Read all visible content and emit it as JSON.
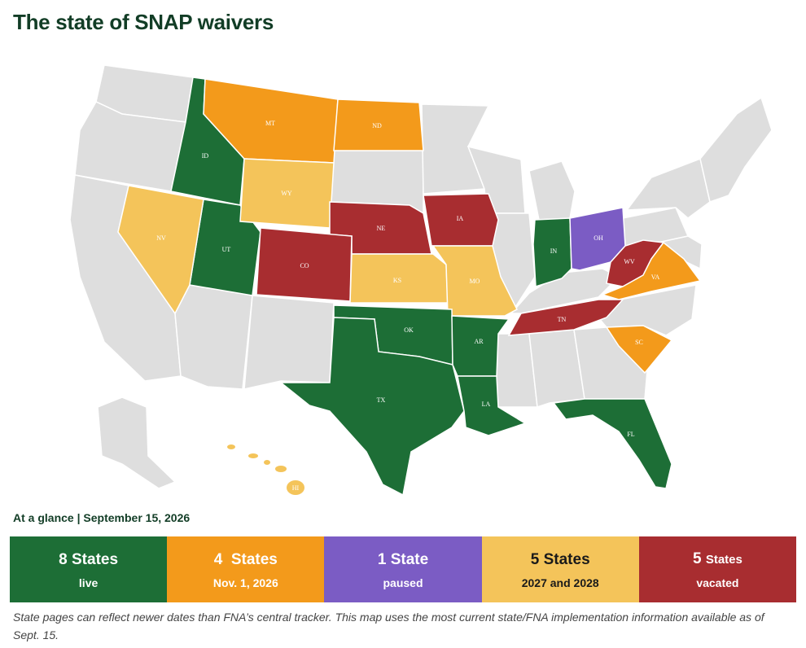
{
  "title": "The state of SNAP waivers",
  "colors": {
    "live": "#1d6e36",
    "nov": "#f39a1b",
    "paused": "#7b5cc4",
    "later": "#f4c45a",
    "vacated": "#a82d30",
    "none": "#dedede"
  },
  "glance": {
    "label": "At a glance",
    "separator": "|",
    "date": "September 15, 2026"
  },
  "legend": [
    {
      "count": "8 States",
      "status": "live"
    },
    {
      "count": "4  States",
      "status": "Nov. 1, 2026"
    },
    {
      "count": "1 State",
      "status": "paused"
    },
    {
      "count": "5 States",
      "status": "2027 and 2028"
    },
    {
      "count": "5",
      "count_suffix": "States",
      "status": "vacated"
    }
  ],
  "note": "State pages can reflect newer dates than FNA’s central tracker. This map uses the most current state/FNA implementation information available as of Sept. 15.",
  "states": {
    "ID": {
      "label": "ID",
      "status": "live"
    },
    "UT": {
      "label": "UT",
      "status": "live"
    },
    "OK": {
      "label": "OK",
      "status": "live"
    },
    "TX": {
      "label": "TX",
      "status": "live"
    },
    "AR": {
      "label": "AR",
      "status": "live"
    },
    "LA": {
      "label": "LA",
      "status": "live"
    },
    "IN": {
      "label": "IN",
      "status": "live"
    },
    "FL": {
      "label": "FL",
      "status": "live"
    },
    "MT": {
      "label": "MT",
      "status": "nov"
    },
    "ND": {
      "label": "ND",
      "status": "nov"
    },
    "VA": {
      "label": "VA",
      "status": "nov"
    },
    "SC": {
      "label": "SC",
      "status": "nov"
    },
    "OH": {
      "label": "OH",
      "status": "paused"
    },
    "NV": {
      "label": "NV",
      "status": "later"
    },
    "WY": {
      "label": "WY",
      "status": "later"
    },
    "KS": {
      "label": "KS",
      "status": "later"
    },
    "MO": {
      "label": "MO",
      "status": "later"
    },
    "HI": {
      "label": "HI",
      "status": "later"
    },
    "NE": {
      "label": "NE",
      "status": "vacated"
    },
    "CO": {
      "label": "CO",
      "status": "vacated"
    },
    "IA": {
      "label": "IA",
      "status": "vacated"
    },
    "TN": {
      "label": "TN",
      "status": "vacated"
    },
    "WV": {
      "label": "WV",
      "status": "vacated"
    }
  }
}
